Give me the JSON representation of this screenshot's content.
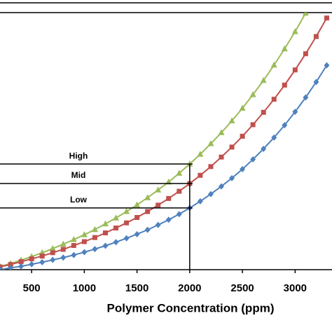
{
  "chart_data": {
    "type": "line",
    "x_label": "Polymer Concentration (ppm)",
    "xlim": [
      200,
      3350
    ],
    "xticks": [
      500,
      1000,
      1500,
      2000,
      2500,
      3000
    ],
    "ylim": [
      0,
      100
    ],
    "reference_x": 2000,
    "levels": [
      {
        "label": "High",
        "value": 41.1
      },
      {
        "label": "Mid",
        "value": 33.5
      },
      {
        "label": "Low",
        "value": 24.0
      }
    ],
    "series": [
      {
        "color": "#9bbb59",
        "marker": "triangle",
        "x": [
          200,
          300,
          400,
          500,
          600,
          700,
          800,
          900,
          1000,
          1100,
          1200,
          1300,
          1400,
          1500,
          1600,
          1700,
          1800,
          1900,
          2000,
          2100,
          2200,
          2300,
          2400,
          2500,
          2600,
          2700,
          2800,
          2900,
          3000,
          3100
        ],
        "values": [
          1.2,
          2.4,
          3.7,
          5.1,
          6.6,
          8.2,
          9.9,
          11.7,
          13.6,
          15.6,
          17.8,
          20.1,
          22.6,
          25.2,
          28.0,
          31.0,
          34.1,
          37.5,
          41.1,
          44.9,
          49.0,
          53.3,
          57.9,
          62.8,
          68.1,
          73.6,
          79.6,
          85.9,
          92.6,
          99.8
        ]
      },
      {
        "color": "#c0504d",
        "marker": "square",
        "x": [
          200,
          300,
          400,
          500,
          600,
          700,
          800,
          900,
          1000,
          1100,
          1200,
          1300,
          1400,
          1500,
          1600,
          1700,
          1800,
          1900,
          2000,
          2100,
          2200,
          2300,
          2400,
          2500,
          2600,
          2700,
          2800,
          2900,
          3000,
          3100,
          3200,
          3300
        ],
        "values": [
          1.1,
          2.0,
          3.1,
          4.2,
          5.3,
          6.6,
          7.9,
          9.4,
          10.9,
          12.5,
          14.3,
          16.2,
          18.2,
          20.3,
          22.6,
          25.1,
          27.7,
          30.5,
          33.5,
          36.7,
          40.1,
          43.8,
          47.7,
          51.9,
          56.4,
          61.2,
          66.3,
          71.8,
          77.7,
          84.0,
          90.7,
          97.9
        ]
      },
      {
        "color": "#4f81bd",
        "marker": "diamond",
        "x": [
          200,
          300,
          400,
          500,
          600,
          700,
          800,
          900,
          1000,
          1100,
          1200,
          1300,
          1400,
          1500,
          1600,
          1700,
          1800,
          1900,
          2000,
          2100,
          2200,
          2300,
          2400,
          2500,
          2600,
          2700,
          2800,
          2900,
          3000,
          3100,
          3200,
          3300
        ],
        "values": [
          0.0,
          0.7,
          1.3,
          2.1,
          2.9,
          3.8,
          4.7,
          5.7,
          6.8,
          8.0,
          9.3,
          10.7,
          12.2,
          13.8,
          15.5,
          17.4,
          19.4,
          21.6,
          24.0,
          26.6,
          29.4,
          32.4,
          35.6,
          39.1,
          42.9,
          47.0,
          51.4,
          56.2,
          61.4,
          67.0,
          73.0,
          79.5
        ]
      }
    ]
  }
}
